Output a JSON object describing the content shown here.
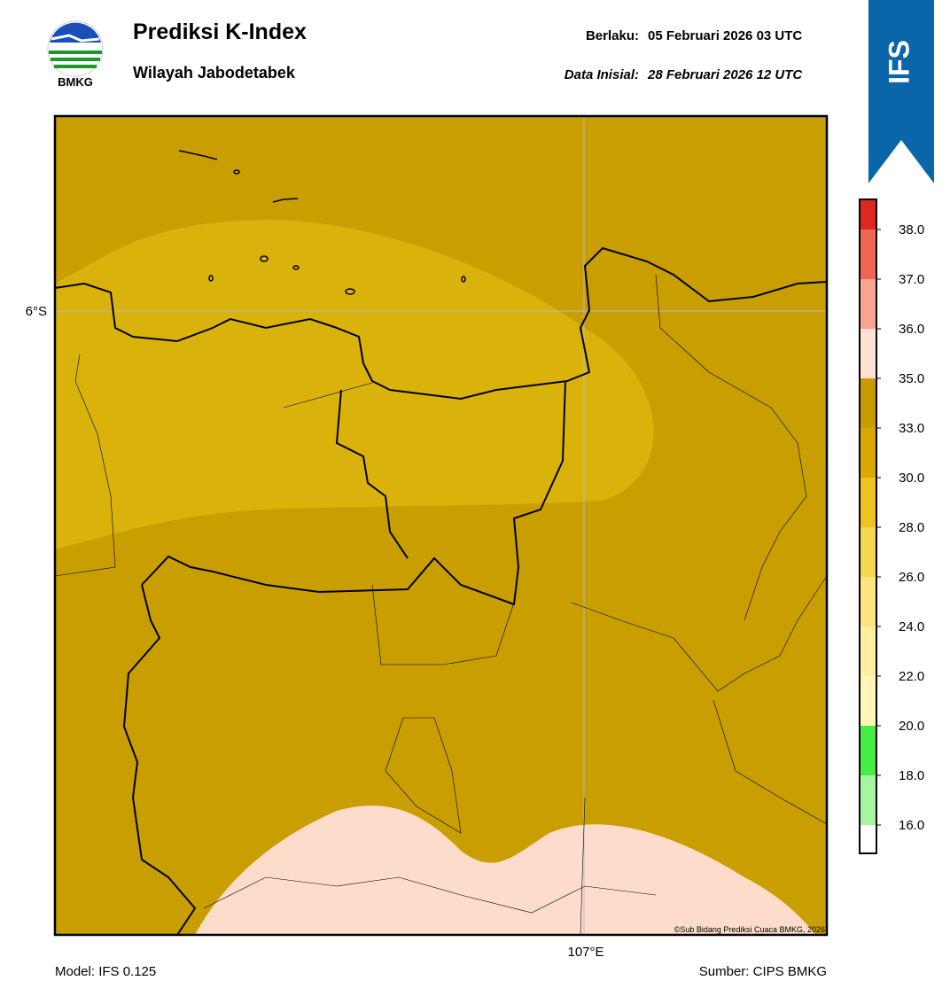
{
  "header": {
    "title": "Prediksi K-Index",
    "subtitle": "Wilayah Jabodetabek",
    "logo_text": "BMKG",
    "valid_label": "Berlaku:",
    "valid_value": "05 Februari 2026 03 UTC",
    "init_label": "Data Inisial:",
    "init_value": "28 Februari 2026 12 UTC",
    "badge": "IFS"
  },
  "map": {
    "lat_label": "6°S",
    "lon_label": "107°E",
    "credit": "©Sub Bidang Prediksi Cuaca BMKG, 2026"
  },
  "footer": {
    "model": "Model: IFS 0.125",
    "source": "Sumber: CIPS BMKG"
  },
  "colorbar": {
    "ticks": [
      {
        "value": 16,
        "label": "16.0"
      },
      {
        "value": 18,
        "label": "18.0"
      },
      {
        "value": 20,
        "label": "20.0"
      },
      {
        "value": 22,
        "label": "22.0"
      },
      {
        "value": 24,
        "label": "24.0"
      },
      {
        "value": 26,
        "label": "26.0"
      },
      {
        "value": 28,
        "label": "28.0"
      },
      {
        "value": 30,
        "label": "30.0"
      },
      {
        "value": 33,
        "label": "33.0"
      },
      {
        "value": 35,
        "label": "35.0"
      },
      {
        "value": 36,
        "label": "36.0"
      },
      {
        "value": 37,
        "label": "37.0"
      },
      {
        "value": 38,
        "label": "38.0"
      }
    ],
    "colors": [
      "#ffffff",
      "#a6f5a0",
      "#44ee44",
      "#fff6b8",
      "#ffefa0",
      "#fde47e",
      "#f7d650",
      "#efc21e",
      "#d8a900",
      "#c99b00",
      "#fde1d2",
      "#f8a592",
      "#ef6453",
      "#e0261e"
    ]
  }
}
